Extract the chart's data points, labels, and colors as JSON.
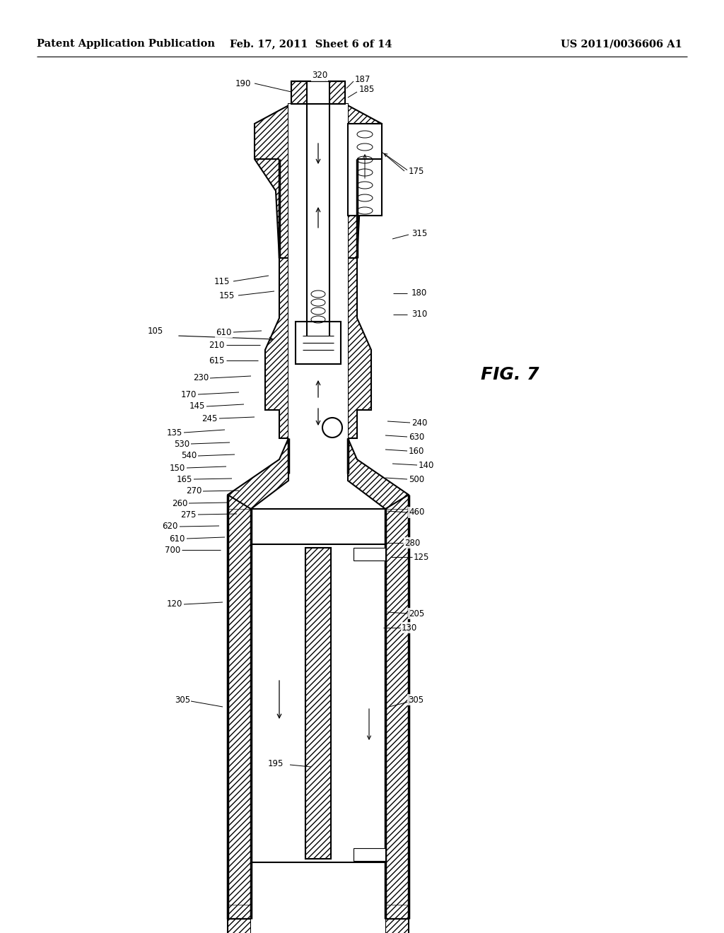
{
  "title_left": "Patent Application Publication",
  "title_center": "Feb. 17, 2011  Sheet 6 of 14",
  "title_right": "US 2011/0036606 A1",
  "fig_label": "FIG. 7",
  "background_color": "#ffffff",
  "line_color": "#000000",
  "header_fontsize": 10.5,
  "label_fontsize": 8.5,
  "fig_label_fontsize": 18
}
